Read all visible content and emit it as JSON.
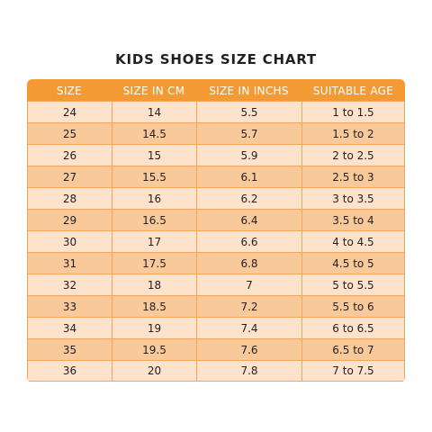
{
  "title": "KIDS SHOES SIZE CHART",
  "headers": [
    "SIZE",
    "SIZE IN CM",
    "SIZE IN INCHS",
    "SUITABLE AGE"
  ],
  "rows": [
    [
      "24",
      "14",
      "5.5",
      "1 to 1.5"
    ],
    [
      "25",
      "14.5",
      "5.7",
      "1.5 to 2"
    ],
    [
      "26",
      "15",
      "5.9",
      "2 to 2.5"
    ],
    [
      "27",
      "15.5",
      "6.1",
      "2.5 to 3"
    ],
    [
      "28",
      "16",
      "6.2",
      "3 to 3.5"
    ],
    [
      "29",
      "16.5",
      "6.4",
      "3.5 to 4"
    ],
    [
      "30",
      "17",
      "6.6",
      "4 to 4.5"
    ],
    [
      "31",
      "17.5",
      "6.8",
      "4.5 to 5"
    ],
    [
      "32",
      "18",
      "7",
      "5 to 5.5"
    ],
    [
      "33",
      "18.5",
      "7.2",
      "5.5 to 6"
    ],
    [
      "34",
      "19",
      "7.4",
      "6 to 6.5"
    ],
    [
      "35",
      "19.5",
      "7.6",
      "6.5 to 7"
    ],
    [
      "36",
      "20",
      "7.8",
      "7 to 7.5"
    ]
  ],
  "colors": {
    "header_bg": "#f39a34",
    "row_light": "#fde3cc",
    "row_dark": "#f9c99a",
    "grid_line": "#f0a65b",
    "title_text": "#231f20"
  }
}
